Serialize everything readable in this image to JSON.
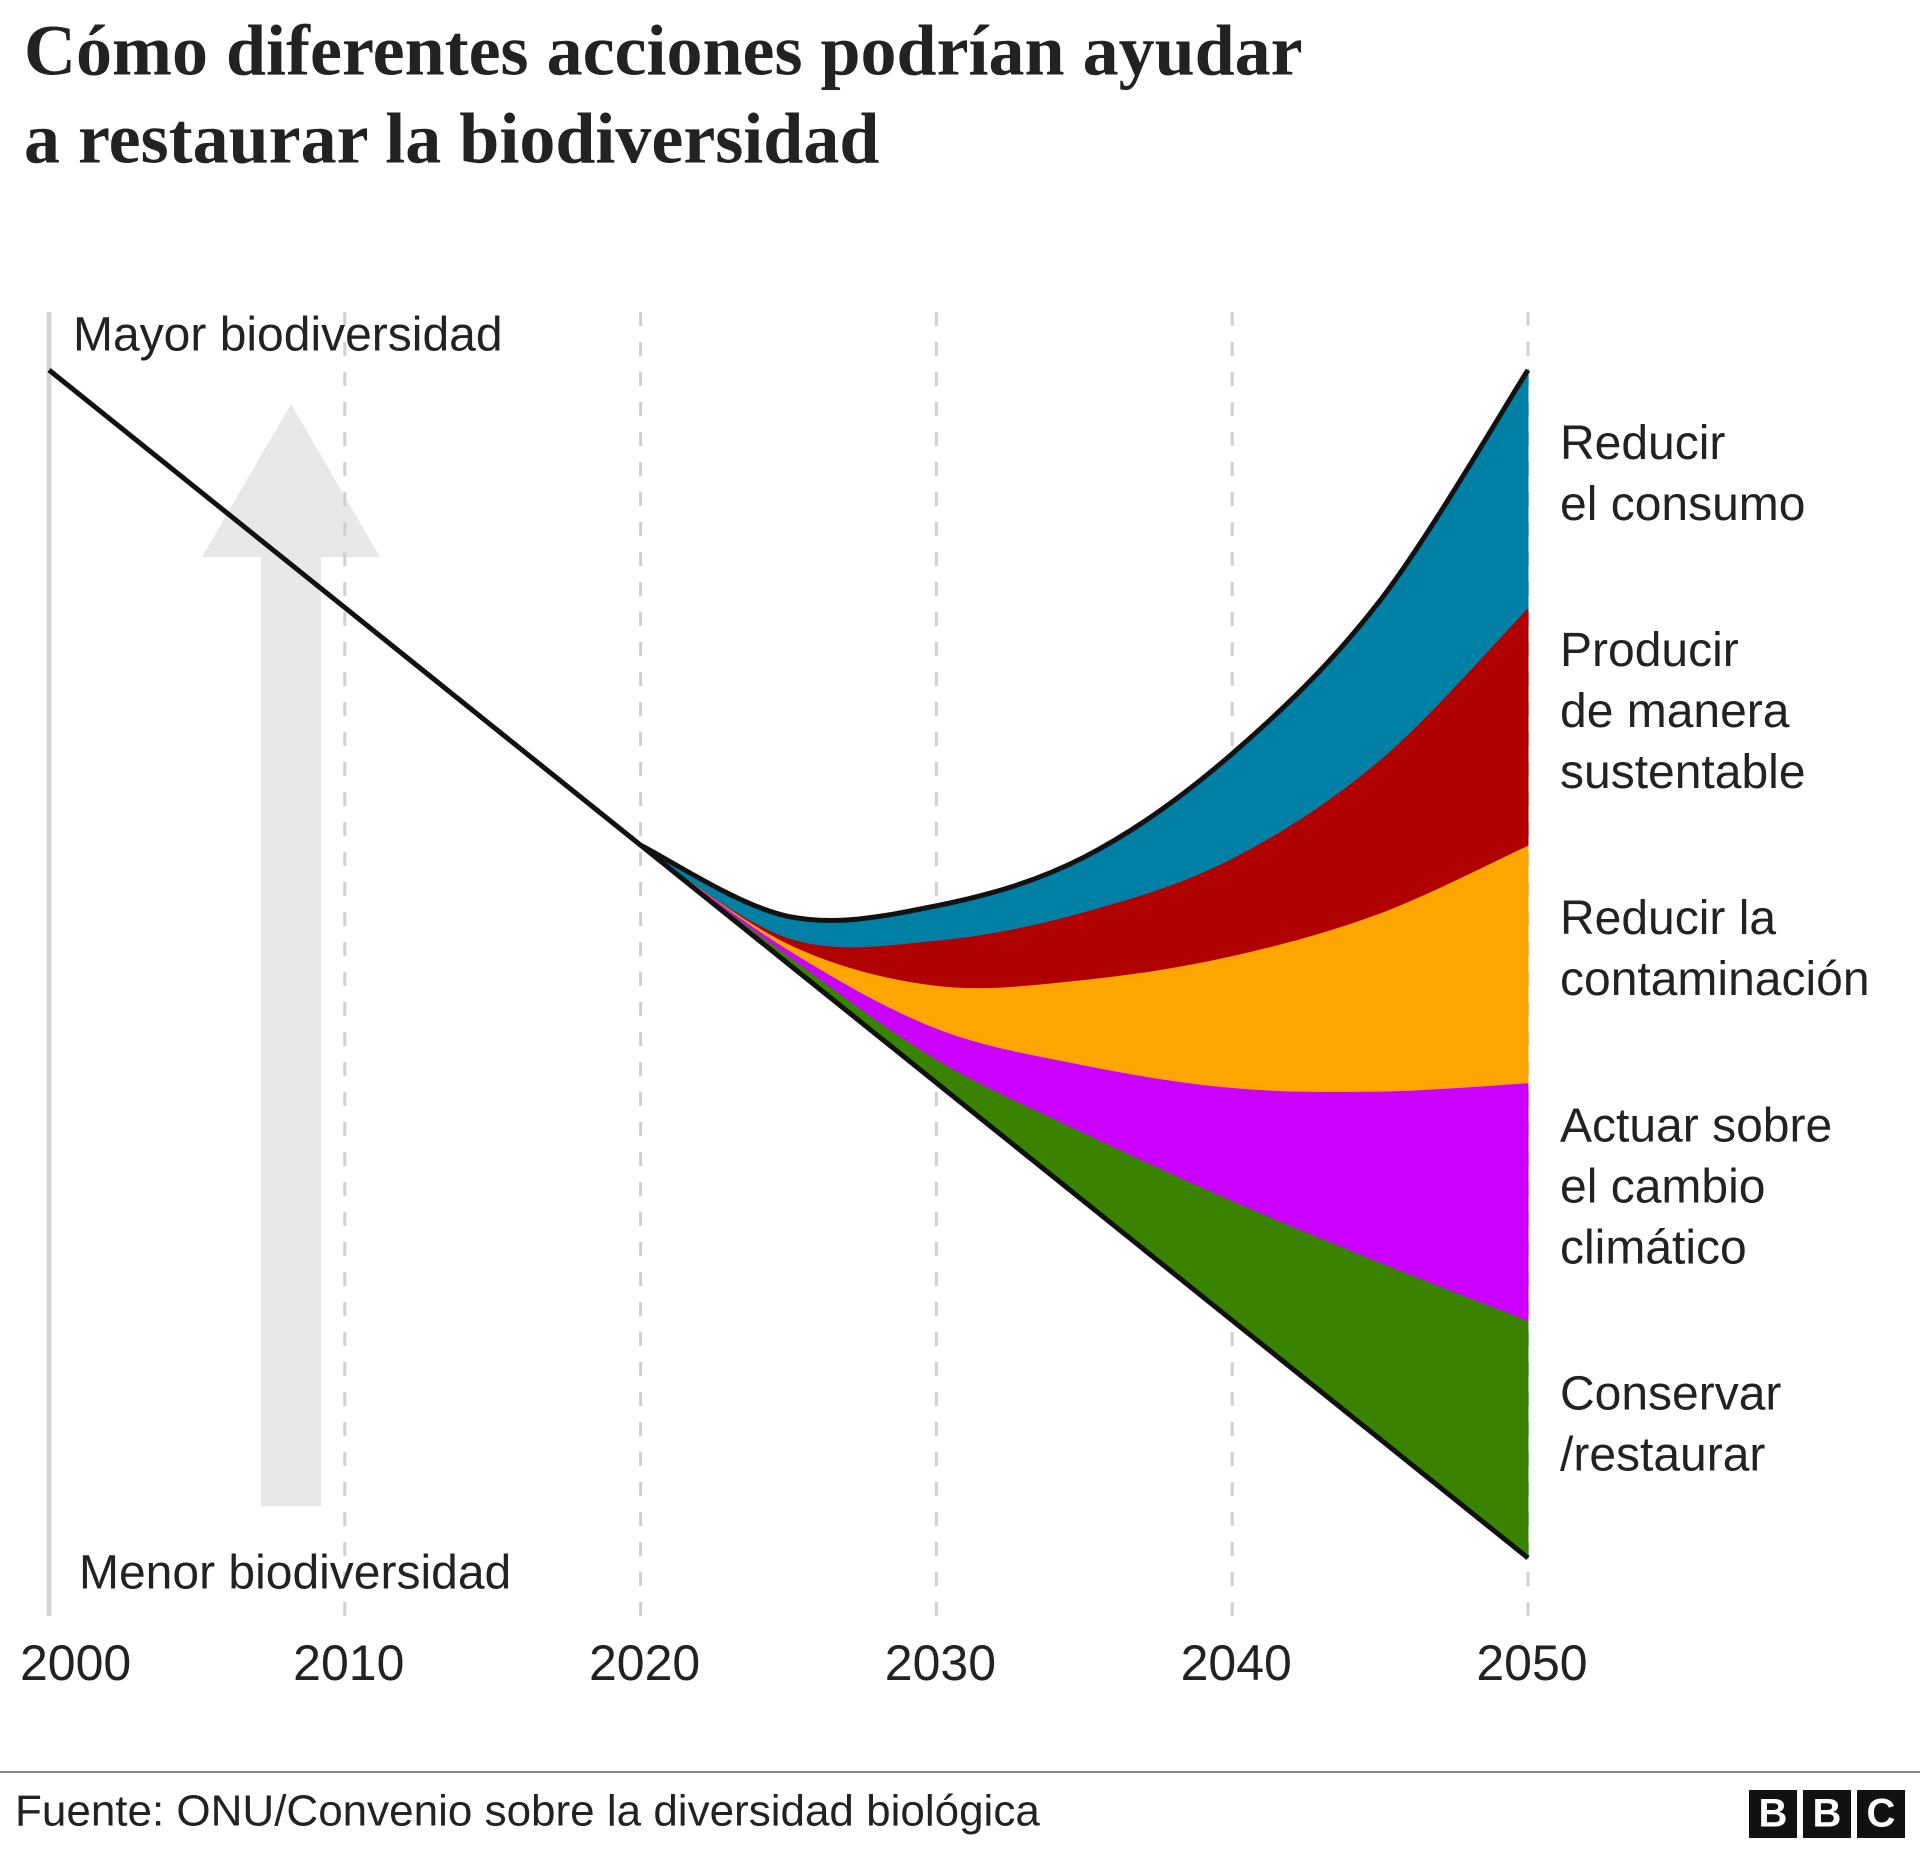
{
  "chart_data": {
    "type": "stacked-area",
    "title": [
      "Cómo diferentes acciones podrían ayudar",
      "a restaurar la biodiversidad"
    ],
    "annotations": {
      "top": "Mayor biodiversidad",
      "bottom": "Menor biodiversidad"
    },
    "x": [
      2000,
      2005,
      2010,
      2015,
      2020,
      2025,
      2030,
      2035,
      2040,
      2045,
      2050
    ],
    "xlim": [
      2000,
      2050
    ],
    "xticks": [
      2000,
      2010,
      2020,
      2030,
      2040,
      2050
    ],
    "ylim": [
      0,
      100
    ],
    "grid": true,
    "trend": [
      100,
      90,
      80,
      70,
      60,
      50,
      40,
      30,
      20,
      10,
      0
    ],
    "trend_color": "#111111",
    "series": [
      {
        "name": [
          "Conservar",
          "/restaurar"
        ],
        "color": "#3a8300",
        "values": [
          null,
          null,
          null,
          null,
          0,
          0.7,
          2.0,
          5.8,
          10.1,
          14.9,
          20
        ]
      },
      {
        "name": [
          "Actuar sobre",
          "el cambio",
          "climático"
        ],
        "color": "#cc00ff",
        "values": [
          null,
          null,
          null,
          null,
          0,
          0.5,
          2.6,
          5.7,
          9.5,
          14.4,
          20
        ]
      },
      {
        "name": [
          "Reducir la",
          "contaminación"
        ],
        "color": "#ffa500",
        "values": [
          null,
          null,
          null,
          null,
          0,
          0.5,
          3.6,
          7.2,
          11.1,
          15.0,
          20
        ]
      },
      {
        "name": [
          "Producir",
          "de manera",
          "sustentable"
        ],
        "color": "#b00000",
        "values": [
          null,
          null,
          null,
          null,
          0,
          0.5,
          3.8,
          5.7,
          8.2,
          12.9,
          20
        ]
      },
      {
        "name": [
          "Reducir",
          "el consumo"
        ],
        "color": "#0080a4",
        "values": [
          null,
          null,
          null,
          null,
          0,
          1.8,
          2.9,
          4.6,
          8.8,
          13.4,
          20
        ]
      }
    ],
    "source": "Fuente: ONU/Convenio sobre la diversidad biológica",
    "logo": [
      "B",
      "B",
      "C"
    ]
  }
}
